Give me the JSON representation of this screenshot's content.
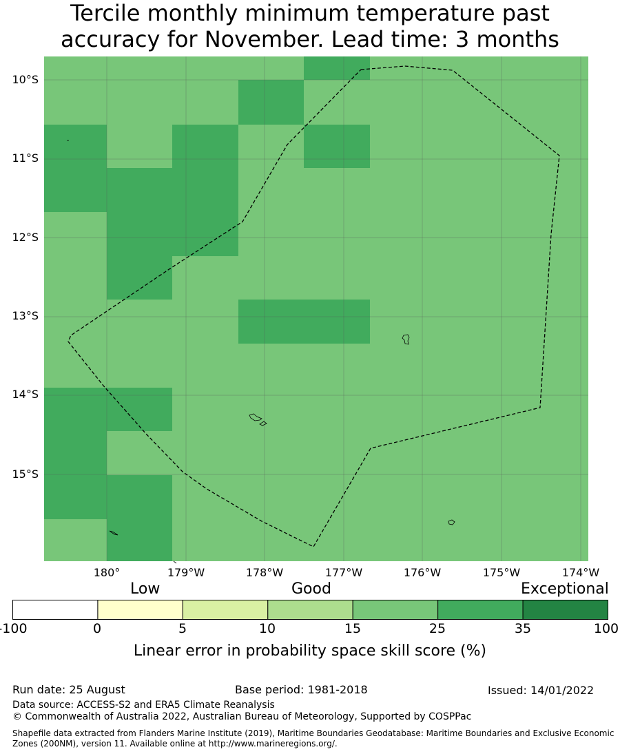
{
  "title": {
    "line1": "Tercile monthly minimum temperature past",
    "line2": "accuracy for November. Lead time: 3 months"
  },
  "map": {
    "lat_ticks": [
      "10°S",
      "11°S",
      "12°S",
      "13°S",
      "14°S",
      "15°S"
    ],
    "lon_ticks": [
      "180°",
      "179°W",
      "178°W",
      "177°W",
      "176°W",
      "175°W",
      "174°W"
    ],
    "colors": {
      "score_15_25": "#78c679",
      "score_25_35": "#41ab5d",
      "score_10_15": "#addd8e",
      "gridline": "#555555",
      "boundary": "#000000"
    },
    "grid_scores_note_values": [
      [
        25,
        25,
        25,
        25,
        35,
        25,
        25,
        25,
        25
      ],
      [
        25,
        25,
        25,
        35,
        25,
        25,
        25,
        25,
        25
      ],
      [
        35,
        25,
        35,
        25,
        35,
        25,
        25,
        25,
        25
      ],
      [
        35,
        35,
        35,
        25,
        25,
        25,
        25,
        25,
        15
      ],
      [
        25,
        35,
        35,
        25,
        25,
        25,
        25,
        15,
        25
      ],
      [
        25,
        35,
        25,
        25,
        25,
        25,
        15,
        25,
        25
      ],
      [
        25,
        25,
        25,
        35,
        35,
        25,
        25,
        25,
        25
      ],
      [
        25,
        25,
        25,
        25,
        25,
        25,
        25,
        25,
        25
      ],
      [
        35,
        35,
        25,
        25,
        25,
        25,
        25,
        25,
        25
      ],
      [
        35,
        25,
        25,
        25,
        25,
        25,
        25,
        25,
        25
      ],
      [
        35,
        35,
        25,
        25,
        25,
        25,
        25,
        25,
        25
      ],
      [
        25,
        35,
        25,
        25,
        25,
        25,
        25,
        25,
        25
      ]
    ]
  },
  "colorbar": {
    "categories": [
      "Low",
      "Good",
      "Exceptional"
    ],
    "ticks": [
      "-100",
      "0",
      "5",
      "10",
      "15",
      "25",
      "35",
      "100"
    ],
    "colors": [
      "#ffffff",
      "#ffffcc",
      "#d9f0a3",
      "#addd8e",
      "#78c679",
      "#41ab5d",
      "#238443"
    ],
    "label": "Linear error in probability space skill score (%)"
  },
  "footer": {
    "run_date": "Run date: 25 August",
    "base_period": "Base period: 1981-2018",
    "issued": "Issued: 14/01/2022",
    "data_source": "Data source: ACCESS-S2 and ERA5 Climate Reanalysis",
    "copyright": "© Commonwealth of Australia 2022, Australian Bureau of Meteorology, Supported by COSPPac",
    "shapefile_line1": "Shapefile data extracted from Flanders Marine Institute (2019), Maritime Boundaries Geodatabase: Maritime Boundaries and Exclusive Economic",
    "shapefile_line2": "Zones (200NM), version 11. Available online at http://www.marineregions.org/."
  }
}
